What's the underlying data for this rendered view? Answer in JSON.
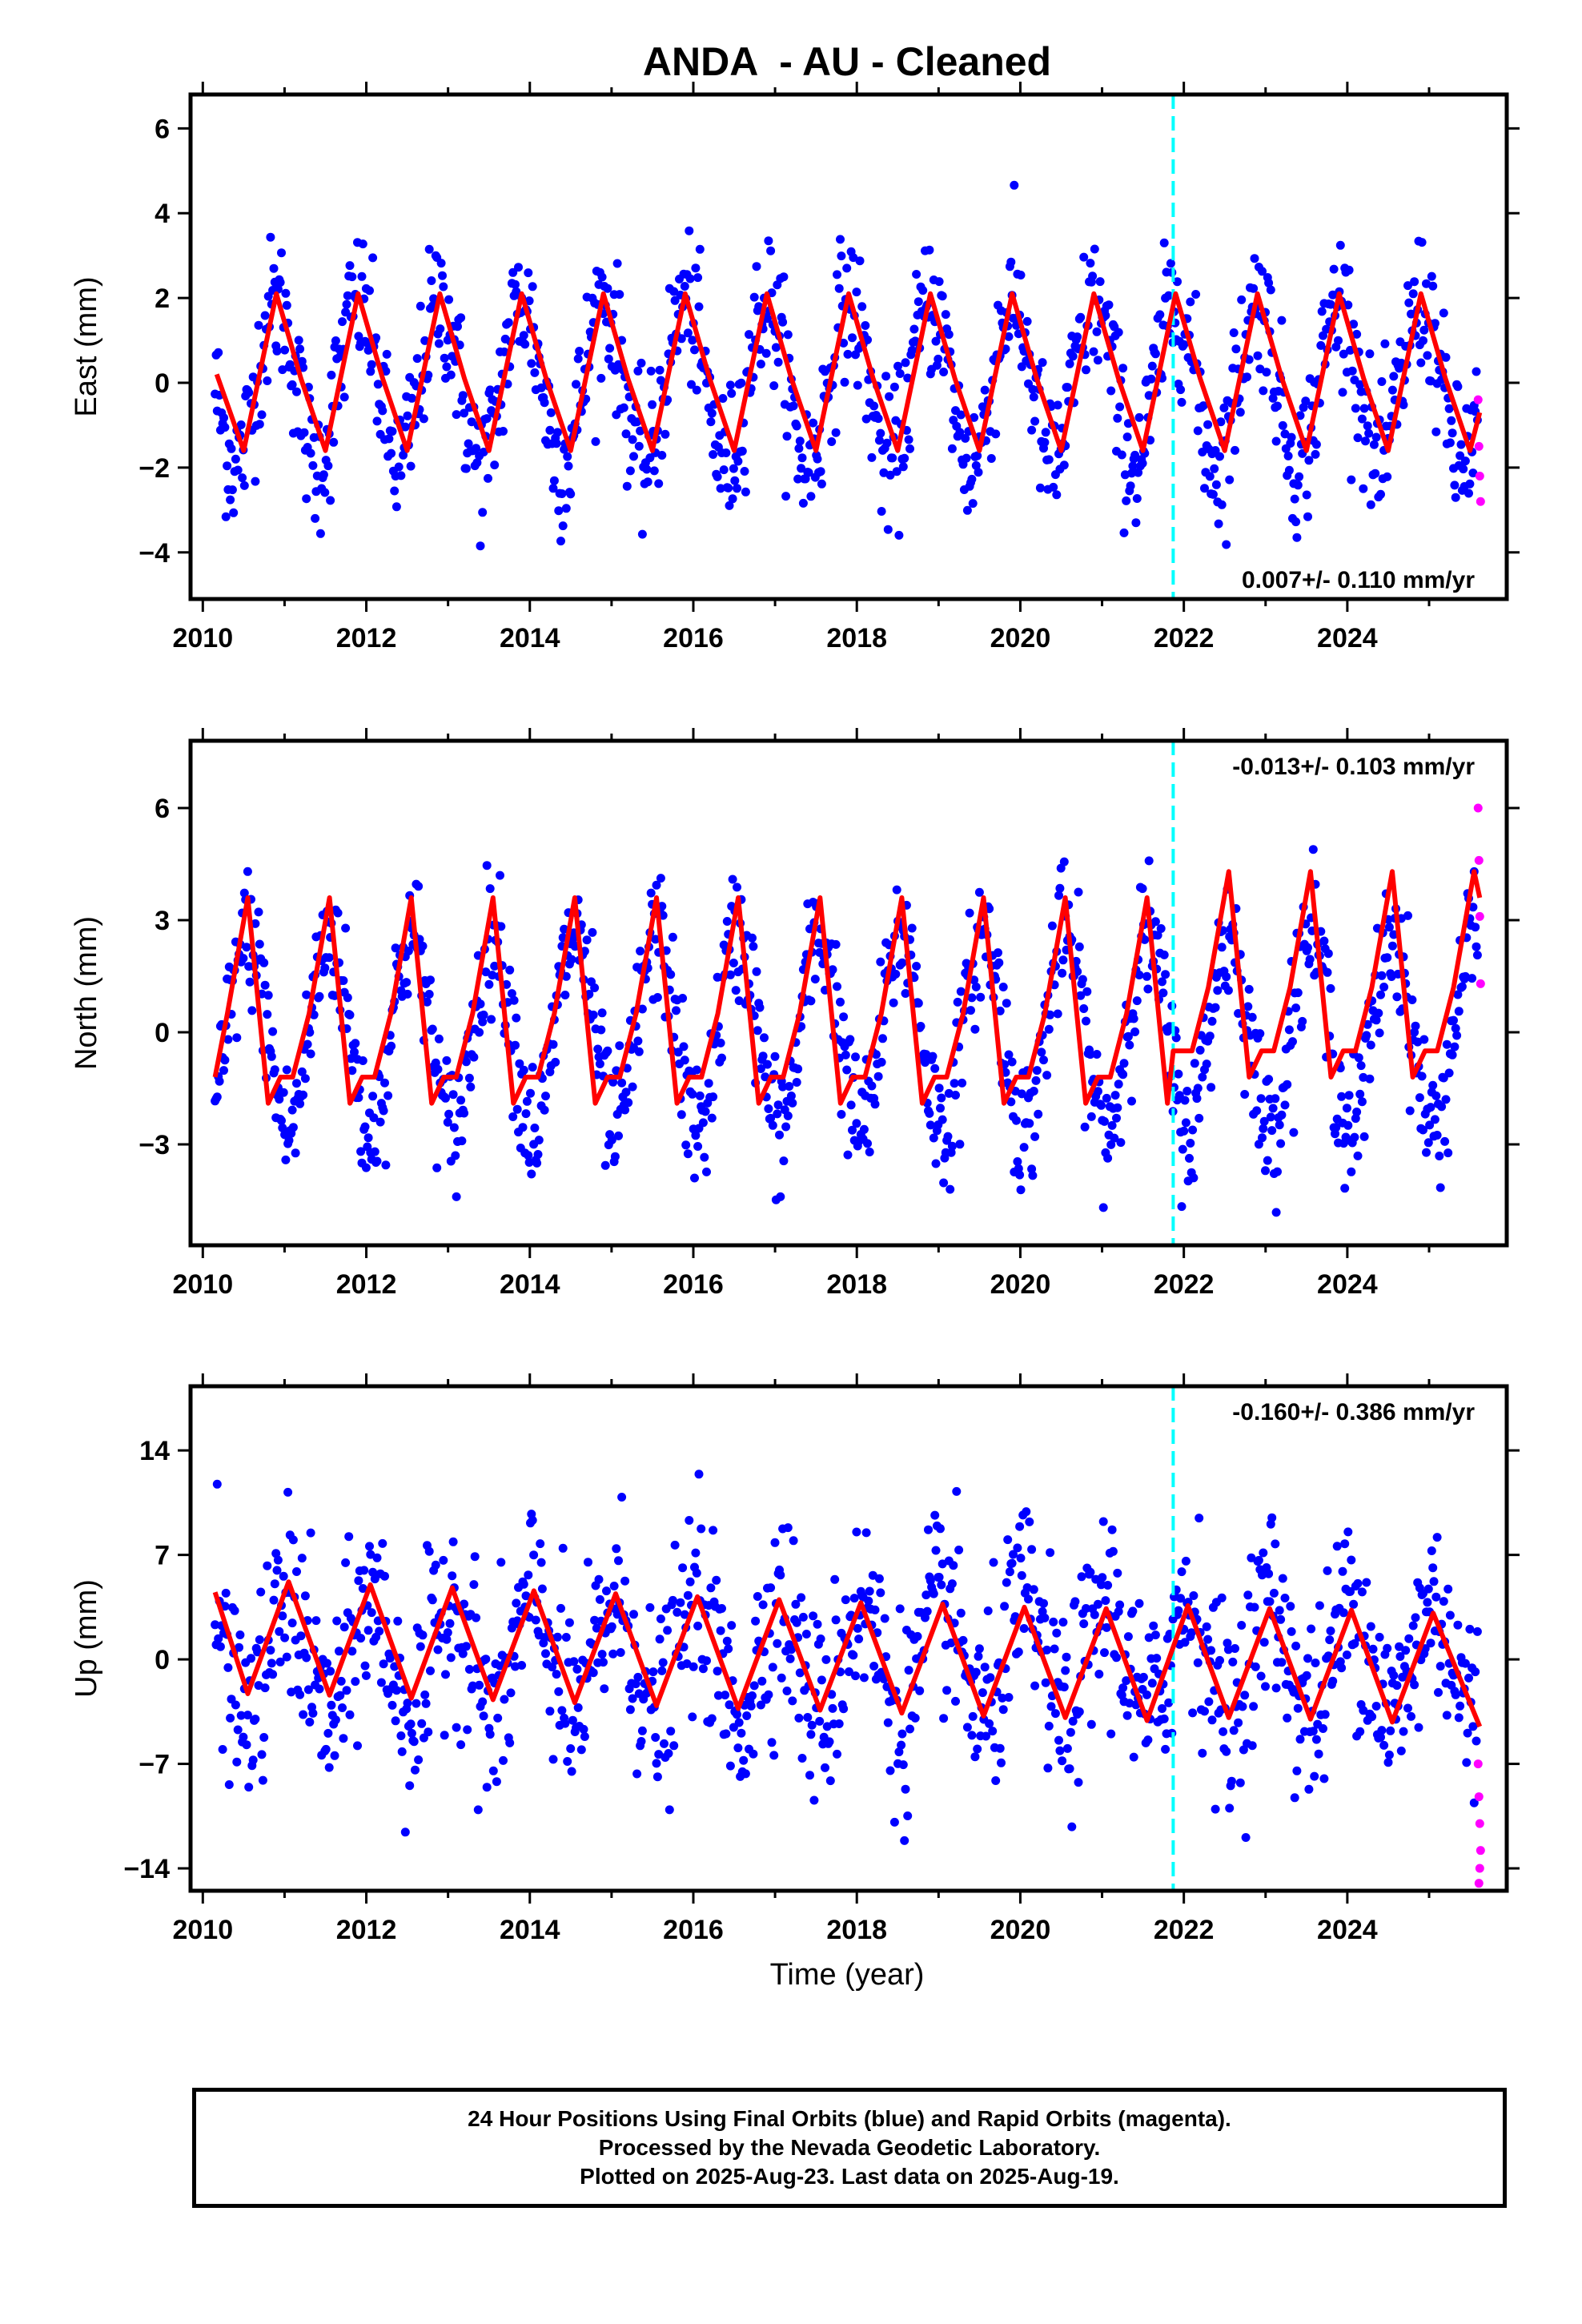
{
  "title": "ANDA  - AU - Cleaned",
  "xlabel": "Time (year)",
  "x_ticks": [
    "2010",
    "2012",
    "2014",
    "2016",
    "2018",
    "2020",
    "2022",
    "2024"
  ],
  "colors": {
    "final": "#0000ff",
    "rapid": "#ff00ff",
    "model": "#ff0000",
    "marker": "#00ffff",
    "frame": "#000000"
  },
  "footer": {
    "line1": "24 Hour Positions Using Final Orbits (blue) and Rapid Orbits (magenta).",
    "line2": "Processed by the Nevada Geodetic Laboratory.",
    "line3": "Plotted on 2025-Aug-23. Last data on 2025-Aug-19."
  },
  "chart_data": [
    {
      "type": "scatter",
      "ylabel": "East (mm)",
      "rate_label": "0.007+/- 0.110 mm/yr",
      "rate_position": "bottom-right",
      "xlim": [
        2009.85,
        2025.95
      ],
      "ylim": [
        -5.1,
        6.8
      ],
      "yticks": [
        -4,
        -2,
        0,
        2,
        4,
        6
      ],
      "ytick_labels": [
        "−4",
        "−2",
        "0",
        "2",
        "4",
        "6"
      ],
      "equipment_change_year": 2021.87,
      "seasonal_model": {
        "name": "seasonal fit",
        "x": [
          2010.17,
          2010.5,
          2010.9,
          2011.2,
          2011.5,
          2011.9,
          2012.2,
          2012.5,
          2012.9,
          2013.2,
          2013.5,
          2013.9,
          2014.2,
          2014.5,
          2014.9,
          2015.2,
          2015.5,
          2015.9,
          2016.2,
          2016.5,
          2016.9,
          2017.2,
          2017.5,
          2017.9,
          2018.2,
          2018.5,
          2018.9,
          2019.2,
          2019.5,
          2019.9,
          2020.2,
          2020.5,
          2020.9,
          2021.2,
          2021.5,
          2021.9,
          2022.2,
          2022.5,
          2022.9,
          2023.2,
          2023.5,
          2023.9,
          2024.2,
          2024.5,
          2024.9,
          2025.2,
          2025.5,
          2025.62
        ],
        "y": [
          0.2,
          -1.6,
          2.1,
          0.1,
          -1.6,
          2.1,
          0.1,
          -1.6,
          2.1,
          0.1,
          -1.6,
          2.1,
          0.1,
          -1.6,
          2.1,
          0.1,
          -1.6,
          2.1,
          0.1,
          -1.6,
          2.1,
          0.1,
          -1.6,
          2.1,
          0.1,
          -1.6,
          2.1,
          0.1,
          -1.6,
          2.1,
          0.1,
          -1.6,
          2.1,
          0.1,
          -1.6,
          2.1,
          0.1,
          -1.6,
          2.1,
          0.1,
          -1.6,
          2.1,
          0.1,
          -1.6,
          2.1,
          0.1,
          -1.6,
          -0.7
        ]
      },
      "final_orbits": {
        "name": "Final Orbits",
        "x_start": 2010.15,
        "x_end": 2025.6,
        "step": 0.0133,
        "seasonal_amplitude": 1.9,
        "seasonal_phase_peak": 0.9,
        "scatter_sd": 0.85
      },
      "rapid_orbits": {
        "name": "Rapid Orbits",
        "x": [
          2025.6,
          2025.61,
          2025.62,
          2025.63
        ],
        "y": [
          -0.4,
          -1.5,
          -2.2,
          -2.8
        ]
      }
    },
    {
      "type": "scatter",
      "ylabel": "North (mm)",
      "rate_label": "-0.013+/- 0.103 mm/yr",
      "rate_position": "top-right",
      "xlim": [
        2009.85,
        2025.95
      ],
      "ylim": [
        -5.7,
        7.8
      ],
      "yticks": [
        -3,
        0,
        3,
        6
      ],
      "ytick_labels": [
        "−3",
        "0",
        "3",
        "6"
      ],
      "equipment_change_year": 2021.87,
      "seasonal_model": {
        "name": "seasonal fit",
        "x": [
          2010.15,
          2010.3,
          2010.55,
          2010.8,
          2010.95,
          2011.1,
          2011.3,
          2011.55,
          2011.8,
          2011.95,
          2012.1,
          2012.3,
          2012.55,
          2012.8,
          2012.95,
          2013.1,
          2013.3,
          2013.55,
          2013.8,
          2013.95,
          2014.1,
          2014.3,
          2014.55,
          2014.8,
          2014.95,
          2015.1,
          2015.3,
          2015.55,
          2015.8,
          2015.95,
          2016.1,
          2016.3,
          2016.55,
          2016.8,
          2016.95,
          2017.1,
          2017.3,
          2017.55,
          2017.8,
          2017.95,
          2018.1,
          2018.3,
          2018.55,
          2018.8,
          2018.95,
          2019.1,
          2019.3,
          2019.55,
          2019.8,
          2019.95,
          2020.1,
          2020.3,
          2020.55,
          2020.8,
          2020.95,
          2021.1,
          2021.3,
          2021.55,
          2021.8,
          2021.87,
          2021.95,
          2022.1,
          2022.3,
          2022.55,
          2022.8,
          2022.95,
          2023.1,
          2023.3,
          2023.55,
          2023.8,
          2023.95,
          2024.1,
          2024.3,
          2024.55,
          2024.8,
          2024.95,
          2025.1,
          2025.3,
          2025.55,
          2025.62
        ],
        "y": [
          -1.2,
          0.5,
          3.6,
          -1.9,
          -1.2,
          -1.2,
          0.5,
          3.6,
          -1.9,
          -1.2,
          -1.2,
          0.5,
          3.6,
          -1.9,
          -1.2,
          -1.2,
          0.5,
          3.6,
          -1.9,
          -1.2,
          -1.2,
          0.5,
          3.6,
          -1.9,
          -1.2,
          -1.2,
          0.5,
          3.6,
          -1.9,
          -1.2,
          -1.2,
          0.5,
          3.6,
          -1.9,
          -1.2,
          -1.2,
          0.5,
          3.6,
          -1.9,
          -1.2,
          -1.2,
          0.5,
          3.6,
          -1.9,
          -1.2,
          -1.2,
          0.5,
          3.6,
          -1.9,
          -1.2,
          -1.2,
          0.5,
          3.6,
          -1.9,
          -1.2,
          -1.2,
          0.5,
          3.6,
          -1.9,
          -0.5,
          -0.5,
          -0.5,
          1.2,
          4.3,
          -1.2,
          -0.5,
          -0.5,
          1.2,
          4.3,
          -1.2,
          -0.5,
          -0.5,
          1.2,
          4.3,
          -1.2,
          -0.5,
          -0.5,
          1.2,
          4.3,
          3.6
        ]
      },
      "final_orbits": {
        "name": "Final Orbits",
        "x_start": 2010.15,
        "x_end": 2025.6,
        "step": 0.0133,
        "seasonal_amplitude": 2.6,
        "seasonal_phase_peak": 0.55,
        "scatter_sd": 0.9
      },
      "rapid_orbits": {
        "name": "Rapid Orbits",
        "x": [
          2025.6,
          2025.61,
          2025.62,
          2025.63
        ],
        "y": [
          6.0,
          4.6,
          3.1,
          1.3
        ]
      }
    },
    {
      "type": "scatter",
      "ylabel": "Up (mm)",
      "rate_label": "-0.160+/- 0.386 mm/yr",
      "rate_position": "top-right",
      "xlim": [
        2009.85,
        2025.95
      ],
      "ylim": [
        -15.5,
        18.3
      ],
      "yticks": [
        -14,
        -7,
        0,
        7,
        14
      ],
      "ytick_labels": [
        "−14",
        "−7",
        "0",
        "7",
        "14"
      ],
      "equipment_change_year": 2021.87,
      "seasonal_model": {
        "name": "seasonal fit",
        "x": [
          2010.15,
          2010.55,
          2011.05,
          2011.55,
          2012.05,
          2012.55,
          2013.05,
          2013.55,
          2014.05,
          2014.55,
          2015.05,
          2015.55,
          2016.05,
          2016.55,
          2017.05,
          2017.55,
          2018.05,
          2018.55,
          2019.05,
          2019.55,
          2020.05,
          2020.55,
          2021.05,
          2021.55,
          2022.05,
          2022.55,
          2023.05,
          2023.55,
          2024.05,
          2024.55,
          2025.05,
          2025.62
        ],
        "y": [
          4.5,
          -2.3,
          5.2,
          -2.4,
          5.0,
          -2.6,
          4.8,
          -2.7,
          4.6,
          -2.9,
          4.4,
          -3.1,
          4.2,
          -3.3,
          4.0,
          -3.4,
          3.8,
          -3.6,
          3.7,
          -3.8,
          3.5,
          -3.9,
          3.4,
          -4.1,
          3.6,
          -3.9,
          3.4,
          -4.0,
          3.3,
          -4.2,
          3.1,
          -4.5
        ]
      },
      "final_orbits": {
        "name": "Final Orbits",
        "x_start": 2010.15,
        "x_end": 2025.6,
        "step": 0.0133,
        "seasonal_amplitude": 3.8,
        "seasonal_phase_peak": 0.05,
        "scatter_sd": 3.3
      },
      "rapid_orbits": {
        "name": "Rapid Orbits",
        "x": [
          2025.6,
          2025.61,
          2025.62,
          2025.63,
          2025.62,
          2025.61
        ],
        "y": [
          -7.0,
          -9.2,
          -11.0,
          -12.8,
          -14.0,
          -15.0
        ]
      }
    }
  ]
}
